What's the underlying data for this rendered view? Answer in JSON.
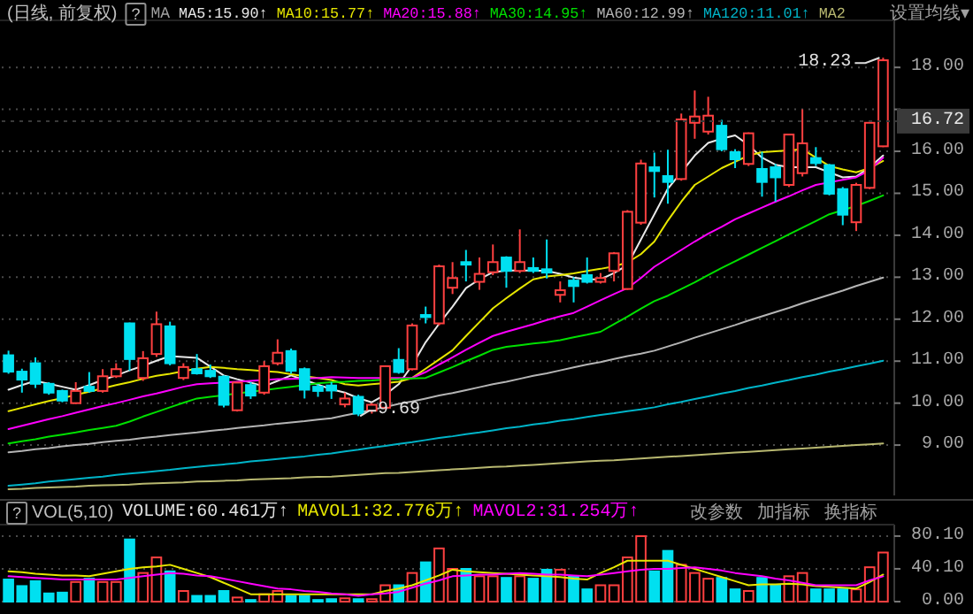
{
  "chart_data": [
    {
      "type": "candlestick",
      "title": "(日线, 前复权)",
      "legend": "top",
      "grid": "y",
      "tick_labels": "y",
      "ylim": [
        7.8,
        19.1
      ],
      "yticks": [
        {
          "value": 9,
          "label": "9.00"
        },
        {
          "value": 10,
          "label": "10.00"
        },
        {
          "value": 11,
          "label": "11.00"
        },
        {
          "value": 12,
          "label": "12.00"
        },
        {
          "value": 13,
          "label": "13.00"
        },
        {
          "value": 14,
          "label": "14.00"
        },
        {
          "value": 15,
          "label": "15.00"
        },
        {
          "value": 16,
          "label": "16.00"
        },
        {
          "value": 17,
          "label": null
        },
        {
          "value": 18,
          "label": "18.00"
        }
      ],
      "categories": [
        null,
        null,
        null,
        null,
        null,
        null,
        null,
        null,
        null,
        null,
        null,
        null,
        null,
        null,
        null,
        null,
        null,
        null,
        null,
        null,
        null,
        null,
        null,
        null,
        null,
        null,
        null,
        null,
        null,
        null,
        null,
        null,
        null,
        null,
        null,
        null,
        null,
        null,
        null,
        null,
        null,
        null,
        null,
        null,
        null,
        null,
        null,
        null,
        null,
        null,
        null,
        null,
        null,
        null,
        null,
        null,
        null,
        null,
        null,
        null,
        null,
        null,
        null,
        null,
        null,
        null
      ],
      "ohlc": [
        [
          11.14,
          11.25,
          10.7,
          10.75
        ],
        [
          10.75,
          10.82,
          10.25,
          10.56
        ],
        [
          10.95,
          11.09,
          10.36,
          10.46
        ],
        [
          10.46,
          10.5,
          10.2,
          10.25
        ],
        [
          10.29,
          10.32,
          10.02,
          10.06
        ],
        [
          10.0,
          10.5,
          9.98,
          10.29
        ],
        [
          10.39,
          10.74,
          10.25,
          10.29
        ],
        [
          10.29,
          10.81,
          10.25,
          10.64
        ],
        [
          10.64,
          10.95,
          10.6,
          10.81
        ],
        [
          11.9,
          11.92,
          10.77,
          11.05
        ],
        [
          10.6,
          11.24,
          10.53,
          11.07
        ],
        [
          11.17,
          12.18,
          11.1,
          11.88
        ],
        [
          11.83,
          11.94,
          10.9,
          10.95
        ],
        [
          10.6,
          10.95,
          10.55,
          10.86
        ],
        [
          10.81,
          11.17,
          10.68,
          10.71
        ],
        [
          10.77,
          10.92,
          10.6,
          10.64
        ],
        [
          10.63,
          10.66,
          9.9,
          9.96
        ],
        [
          9.83,
          10.5,
          9.8,
          10.49
        ],
        [
          10.43,
          10.5,
          10.1,
          10.18
        ],
        [
          10.25,
          11.0,
          10.2,
          10.88
        ],
        [
          10.95,
          11.52,
          10.9,
          11.2
        ],
        [
          11.24,
          11.3,
          10.7,
          10.77
        ],
        [
          10.81,
          10.85,
          10.11,
          10.32
        ],
        [
          10.39,
          10.45,
          10.15,
          10.29
        ],
        [
          10.42,
          10.5,
          10.1,
          10.3
        ],
        [
          9.97,
          10.25,
          9.9,
          10.11
        ],
        [
          10.15,
          10.2,
          9.69,
          9.75
        ],
        [
          9.82,
          10.0,
          9.75,
          9.96
        ],
        [
          9.89,
          10.9,
          9.85,
          10.88
        ],
        [
          11.03,
          11.31,
          10.7,
          10.74
        ],
        [
          10.81,
          11.9,
          10.78,
          11.85
        ],
        [
          12.1,
          12.3,
          11.9,
          12.05
        ],
        [
          11.9,
          13.3,
          11.85,
          13.26
        ],
        [
          12.75,
          13.36,
          12.6,
          12.98
        ],
        [
          13.36,
          13.65,
          12.9,
          13.3
        ],
        [
          12.89,
          13.47,
          12.7,
          13.08
        ],
        [
          13.12,
          13.78,
          13.05,
          13.36
        ],
        [
          13.47,
          13.5,
          12.75,
          13.15
        ],
        [
          13.15,
          14.14,
          13.1,
          13.36
        ],
        [
          13.22,
          13.47,
          13.1,
          13.15
        ],
        [
          13.19,
          13.9,
          12.97,
          13.11
        ],
        [
          12.58,
          12.9,
          12.4,
          12.69
        ],
        [
          12.92,
          13.0,
          12.4,
          12.79
        ],
        [
          13.05,
          13.47,
          12.85,
          12.89
        ],
        [
          12.89,
          13.1,
          12.85,
          12.98
        ],
        [
          13.15,
          13.6,
          12.9,
          13.57
        ],
        [
          12.72,
          14.6,
          12.7,
          14.56
        ],
        [
          14.3,
          15.8,
          14.25,
          15.71
        ],
        [
          15.62,
          15.97,
          14.9,
          15.53
        ],
        [
          15.41,
          16.04,
          14.75,
          15.27
        ],
        [
          15.34,
          16.9,
          15.3,
          16.76
        ],
        [
          16.68,
          17.45,
          16.3,
          16.83
        ],
        [
          16.47,
          17.3,
          16.4,
          16.85
        ],
        [
          16.61,
          16.75,
          16.0,
          16.05
        ],
        [
          15.98,
          16.05,
          15.6,
          15.81
        ],
        [
          15.7,
          16.45,
          15.65,
          16.43
        ],
        [
          15.58,
          15.99,
          14.92,
          15.27
        ],
        [
          15.62,
          15.7,
          14.8,
          15.38
        ],
        [
          15.2,
          16.4,
          15.15,
          16.4
        ],
        [
          15.48,
          17.0,
          15.4,
          16.19
        ],
        [
          15.84,
          16.1,
          15.65,
          15.72
        ],
        [
          15.67,
          15.7,
          14.95,
          14.99
        ],
        [
          15.1,
          15.15,
          14.24,
          14.49
        ],
        [
          14.31,
          15.25,
          14.1,
          15.2
        ],
        [
          15.13,
          16.7,
          15.1,
          16.68
        ],
        [
          16.12,
          18.23,
          16.1,
          18.17
        ]
      ],
      "colors": [
        "#00e0f0",
        "#00e0f0",
        "#00e0f0",
        "#00e0f0",
        "#00e0f0",
        "#ff4040",
        "#00e0f0",
        "#ff4040",
        "#ff4040",
        "#00e0f0",
        "#ff4040",
        "#ff4040",
        "#00e0f0",
        "#ff4040",
        "#00e0f0",
        "#00e0f0",
        "#00e0f0",
        "#ff4040",
        "#00e0f0",
        "#ff4040",
        "#ff4040",
        "#00e0f0",
        "#00e0f0",
        "#00e0f0",
        "#00e0f0",
        "#ff4040",
        "#00e0f0",
        "#ff4040",
        "#ff4040",
        "#00e0f0",
        "#ff4040",
        "#00e0f0",
        "#ff4040",
        "#ff4040",
        "#00e0f0",
        "#ff4040",
        "#ff4040",
        "#00e0f0",
        "#ff4040",
        "#00e0f0",
        "#00e0f0",
        "#ff4040",
        "#00e0f0",
        "#00e0f0",
        "#ff4040",
        "#ff4040",
        "#ff4040",
        "#ff4040",
        "#00e0f0",
        "#00e0f0",
        "#ff4040",
        "#ff4040",
        "#ff4040",
        "#00e0f0",
        "#00e0f0",
        "#ff4040",
        "#00e0f0",
        "#00e0f0",
        "#ff4040",
        "#ff4040",
        "#00e0f0",
        "#00e0f0",
        "#00e0f0",
        "#ff4040",
        "#ff4040",
        "#ff4040"
      ],
      "series": [
        {
          "name": "MA5:15.90↑",
          "type": "line",
          "color": "#e8e8e8",
          "values": [
            10.32,
            10.43,
            10.53,
            10.46,
            10.39,
            10.32,
            10.43,
            10.55,
            10.66,
            10.78,
            10.89,
            11.01,
            11.12,
            11.1,
            11.08,
            10.87,
            10.66,
            10.57,
            10.49,
            10.4,
            10.53,
            10.66,
            10.55,
            10.44,
            10.33,
            10.25,
            10.12,
            10.02,
            10.2,
            10.45,
            10.9,
            11.45,
            11.89,
            12.3,
            12.74,
            12.95,
            13.12,
            13.16,
            13.16,
            13.16,
            13.15,
            13.08,
            12.99,
            12.95,
            12.95,
            13.1,
            13.29,
            13.9,
            14.5,
            15.11,
            15.5,
            15.9,
            16.2,
            16.3,
            16.38,
            16.15,
            15.85,
            15.68,
            15.62,
            15.62,
            15.62,
            15.5,
            15.38,
            15.4,
            15.62,
            15.9
          ]
        },
        {
          "name": "MA10:15.77↑",
          "type": "line",
          "color": "#e6e600",
          "values": [
            9.81,
            9.89,
            9.97,
            10.05,
            10.12,
            10.2,
            10.27,
            10.35,
            10.43,
            10.5,
            10.58,
            10.65,
            10.7,
            10.76,
            10.82,
            10.86,
            10.84,
            10.81,
            10.79,
            10.76,
            10.74,
            10.69,
            10.64,
            10.6,
            10.55,
            10.45,
            10.42,
            10.45,
            10.48,
            10.51,
            10.6,
            10.82,
            11.04,
            11.26,
            11.6,
            11.93,
            12.26,
            12.5,
            12.73,
            12.95,
            13.02,
            13.05,
            13.09,
            13.15,
            13.2,
            13.26,
            13.35,
            13.55,
            13.85,
            14.35,
            14.8,
            15.2,
            15.4,
            15.6,
            15.75,
            15.9,
            15.98,
            16.0,
            16.02,
            16.05,
            15.85,
            15.65,
            15.57,
            15.5,
            15.6,
            15.77
          ]
        },
        {
          "name": "MA20:15.88↑",
          "type": "line",
          "color": "#ff00ff",
          "values": [
            9.38,
            9.46,
            9.54,
            9.62,
            9.69,
            9.77,
            9.85,
            9.93,
            10.0,
            10.08,
            10.16,
            10.23,
            10.31,
            10.39,
            10.45,
            10.47,
            10.49,
            10.51,
            10.53,
            10.55,
            10.57,
            10.58,
            10.59,
            10.6,
            10.62,
            10.61,
            10.6,
            10.6,
            10.6,
            10.6,
            10.6,
            10.74,
            10.92,
            11.09,
            11.27,
            11.44,
            11.6,
            11.7,
            11.79,
            11.88,
            11.98,
            12.07,
            12.15,
            12.3,
            12.45,
            12.6,
            12.74,
            12.98,
            13.25,
            13.45,
            13.65,
            13.85,
            14.04,
            14.2,
            14.38,
            14.52,
            14.66,
            14.8,
            14.93,
            15.07,
            15.2,
            15.26,
            15.32,
            15.38,
            15.55,
            15.85
          ]
        },
        {
          "name": "MA30:14.95↑",
          "type": "line",
          "color": "#00e000",
          "values": [
            9.04,
            9.09,
            9.14,
            9.2,
            9.25,
            9.3,
            9.36,
            9.41,
            9.46,
            9.56,
            9.68,
            9.79,
            9.9,
            10.01,
            10.11,
            10.15,
            10.19,
            10.23,
            10.27,
            10.31,
            10.35,
            10.39,
            10.43,
            10.47,
            10.5,
            10.51,
            10.53,
            10.54,
            10.56,
            10.57,
            10.59,
            10.6,
            10.73,
            10.86,
            11.0,
            11.13,
            11.27,
            11.34,
            11.38,
            11.42,
            11.45,
            11.5,
            11.57,
            11.63,
            11.7,
            11.88,
            12.06,
            12.25,
            12.43,
            12.56,
            12.72,
            12.88,
            13.05,
            13.22,
            13.38,
            13.54,
            13.7,
            13.86,
            14.02,
            14.18,
            14.34,
            14.5,
            14.6,
            14.7,
            14.82,
            14.95
          ]
        },
        {
          "name": "MA60:12.99↑",
          "type": "line",
          "color": "#b4b4b4",
          "values": [
            8.83,
            8.86,
            8.9,
            8.93,
            8.97,
            9.0,
            9.03,
            9.07,
            9.1,
            9.13,
            9.17,
            9.2,
            9.24,
            9.27,
            9.3,
            9.34,
            9.37,
            9.41,
            9.44,
            9.47,
            9.51,
            9.54,
            9.57,
            9.61,
            9.64,
            9.71,
            9.77,
            9.84,
            9.91,
            9.98,
            10.04,
            10.11,
            10.18,
            10.24,
            10.31,
            10.38,
            10.45,
            10.51,
            10.58,
            10.65,
            10.71,
            10.78,
            10.85,
            10.92,
            10.98,
            11.05,
            11.12,
            11.18,
            11.25,
            11.35,
            11.45,
            11.56,
            11.66,
            11.76,
            11.86,
            11.97,
            12.07,
            12.17,
            12.27,
            12.38,
            12.48,
            12.58,
            12.68,
            12.79,
            12.89,
            12.99
          ]
        },
        {
          "name": "MA120:11.01↑",
          "type": "line",
          "color": "#00b4c8",
          "values": [
            8.03,
            8.06,
            8.09,
            8.13,
            8.16,
            8.19,
            8.22,
            8.25,
            8.29,
            8.32,
            8.35,
            8.38,
            8.41,
            8.45,
            8.48,
            8.51,
            8.54,
            8.57,
            8.61,
            8.64,
            8.67,
            8.7,
            8.73,
            8.77,
            8.8,
            8.85,
            8.89,
            8.94,
            8.98,
            9.03,
            9.07,
            9.12,
            9.17,
            9.21,
            9.26,
            9.3,
            9.35,
            9.4,
            9.44,
            9.49,
            9.53,
            9.58,
            9.62,
            9.67,
            9.72,
            9.76,
            9.81,
            9.85,
            9.9,
            9.97,
            10.03,
            10.1,
            10.16,
            10.23,
            10.29,
            10.36,
            10.42,
            10.49,
            10.55,
            10.62,
            10.68,
            10.75,
            10.81,
            10.88,
            10.94,
            11.01
          ]
        },
        {
          "name": "MA2",
          "type": "line",
          "color": "#b8b870",
          "values": [
            7.95,
            7.96,
            7.98,
            7.99,
            8.0,
            8.01,
            8.03,
            8.04,
            8.05,
            8.06,
            8.08,
            8.09,
            8.1,
            8.11,
            8.13,
            8.14,
            8.15,
            8.16,
            8.18,
            8.19,
            8.2,
            8.21,
            8.23,
            8.24,
            8.25,
            8.27,
            8.29,
            8.31,
            8.33,
            8.34,
            8.36,
            8.38,
            8.4,
            8.42,
            8.44,
            8.46,
            8.48,
            8.49,
            8.51,
            8.53,
            8.55,
            8.57,
            8.59,
            8.61,
            8.63,
            8.64,
            8.66,
            8.68,
            8.7,
            8.72,
            8.74,
            8.76,
            8.78,
            8.8,
            8.82,
            8.84,
            8.86,
            8.88,
            8.9,
            8.92,
            8.94,
            8.96,
            8.98,
            9.0,
            9.02,
            9.04
          ]
        }
      ],
      "ref_lines": [
        {
          "axis": "y",
          "value": 16.72,
          "label": "16.72",
          "color": "#3a3a3a"
        }
      ],
      "annotations": [
        "?",
        "MA",
        "设置均线▾",
        "18.23",
        "9.69"
      ]
    },
    {
      "type": "bar",
      "title": "VOL(5,10)",
      "legend": "top",
      "grid": "y",
      "tick_labels": "y",
      "ylim": [
        0,
        93
      ],
      "yticks": [
        {
          "value": 0,
          "label": "0.00"
        },
        {
          "value": 40.1,
          "label": "40.10"
        },
        {
          "value": 80.1,
          "label": "80.10"
        }
      ],
      "categories": [
        null,
        null,
        null,
        null,
        null,
        null,
        null,
        null,
        null,
        null,
        null,
        null,
        null,
        null,
        null,
        null,
        null,
        null,
        null,
        null,
        null,
        null,
        null,
        null,
        null,
        null,
        null,
        null,
        null,
        null,
        null,
        null,
        null,
        null,
        null,
        null,
        null,
        null,
        null,
        null,
        null,
        null,
        null,
        null,
        null,
        null,
        null,
        null,
        null,
        null,
        null,
        null,
        null,
        null,
        null,
        null,
        null,
        null,
        null,
        null,
        null,
        null,
        null,
        null,
        null,
        null
      ],
      "series": [
        {
          "name": "VOLUME:60.461万↑",
          "colors": [
            "#00e0f0",
            "#00e0f0",
            "#00e0f0",
            "#00e0f0",
            "#00e0f0",
            "#ff4040",
            "#00e0f0",
            "#ff4040",
            "#ff4040",
            "#00e0f0",
            "#ff4040",
            "#ff4040",
            "#00e0f0",
            "#ff4040",
            "#00e0f0",
            "#00e0f0",
            "#00e0f0",
            "#ff4040",
            "#00e0f0",
            "#ff4040",
            "#ff4040",
            "#00e0f0",
            "#00e0f0",
            "#00e0f0",
            "#00e0f0",
            "#ff4040",
            "#00e0f0",
            "#ff4040",
            "#ff4040",
            "#00e0f0",
            "#ff4040",
            "#00e0f0",
            "#ff4040",
            "#ff4040",
            "#00e0f0",
            "#ff4040",
            "#ff4040",
            "#00e0f0",
            "#ff4040",
            "#00e0f0",
            "#00e0f0",
            "#ff4040",
            "#00e0f0",
            "#00e0f0",
            "#ff4040",
            "#ff4040",
            "#ff4040",
            "#ff4040",
            "#00e0f0",
            "#00e0f0",
            "#ff4040",
            "#ff4040",
            "#ff4040",
            "#00e0f0",
            "#00e0f0",
            "#ff4040",
            "#00e0f0",
            "#00e0f0",
            "#ff4040",
            "#ff4040",
            "#00e0f0",
            "#00e0f0",
            "#00e0f0",
            "#ff4040",
            "#ff4040",
            "#ff4040"
          ],
          "values": [
            27,
            19,
            25,
            10,
            11,
            24,
            28,
            24,
            24,
            76,
            35,
            54,
            37,
            13,
            7,
            7,
            13,
            5,
            2,
            9,
            13,
            7,
            7,
            2,
            3,
            4,
            3,
            3,
            20,
            20,
            35,
            48,
            65,
            40,
            40,
            31,
            31,
            29,
            31,
            28,
            39,
            39,
            31,
            15,
            20,
            20,
            54,
            80,
            37,
            62,
            45,
            35,
            28,
            29,
            15,
            13,
            29,
            20,
            31,
            35,
            15,
            15,
            15,
            15,
            42,
            60
          ]
        },
        {
          "name": "MAVOL1:32.776万↑",
          "type": "line",
          "color": "#e6e600",
          "values": [
            37,
            36,
            34,
            33,
            32,
            32,
            31,
            34,
            37,
            40,
            42,
            43,
            45,
            40,
            35,
            30,
            23,
            16,
            9,
            9,
            9,
            9,
            9,
            9,
            9,
            9,
            9,
            9,
            13,
            16,
            20,
            26,
            32,
            39,
            37,
            36,
            35,
            34,
            33,
            32,
            31,
            30,
            28,
            27,
            35,
            42,
            50,
            50,
            50,
            50,
            45,
            40,
            35,
            30,
            25,
            20,
            21,
            21,
            22,
            21,
            19,
            18,
            17,
            16,
            24,
            33
          ]
        },
        {
          "name": "MAVOL2:31.254万↑",
          "type": "line",
          "color": "#ff00ff",
          "values": [
            31,
            30,
            29,
            28,
            27,
            27,
            27,
            27,
            27,
            29,
            31,
            33,
            35,
            34,
            32,
            31,
            28,
            25,
            22,
            19,
            16,
            15,
            13,
            12,
            10,
            9,
            7,
            9,
            10,
            12,
            17,
            22,
            26,
            31,
            32,
            33,
            33,
            34,
            35,
            34,
            33,
            33,
            32,
            31,
            33,
            35,
            37,
            39,
            40,
            40,
            41,
            42,
            40,
            38,
            35,
            33,
            31,
            28,
            26,
            23,
            20,
            20,
            20,
            20,
            26,
            31
          ]
        }
      ],
      "annotations": [
        "?",
        "改参数",
        "加指标",
        "换指标"
      ]
    }
  ]
}
